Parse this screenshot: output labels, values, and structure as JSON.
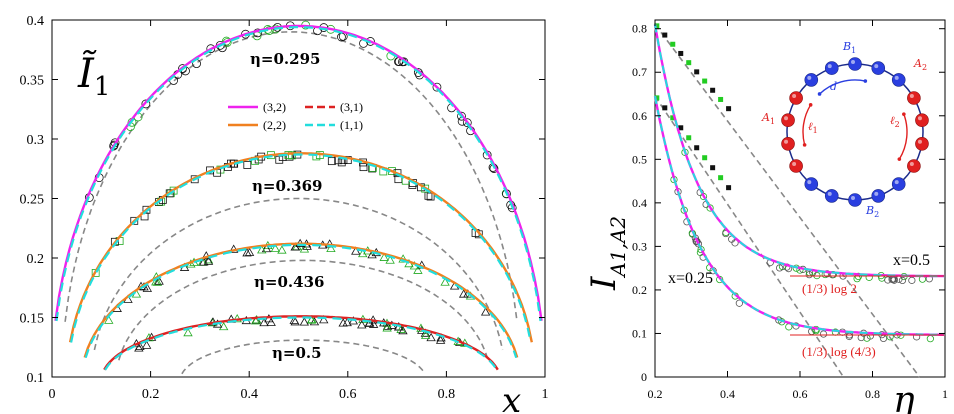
{
  "chart_data": [
    {
      "type": "line",
      "title": "",
      "panel_label": "Ĩ",
      "panel_label_sub": "1",
      "xlabel": "x",
      "ylabel": "",
      "xlim": [
        0,
        1
      ],
      "ylim": [
        0.1,
        0.4
      ],
      "xticks": [
        "0",
        "0.2",
        "0.4",
        "0.6",
        "0.8",
        "1"
      ],
      "yticks": [
        "0.1",
        "0.15",
        "0.2",
        "0.25",
        "0.3",
        "0.35",
        "0.4"
      ],
      "legend": [
        {
          "label": "(3,2)",
          "color": "#ee22ee"
        },
        {
          "label": "(3,1)",
          "color": "#dd2222"
        },
        {
          "label": "(2,2)",
          "color": "#f08020"
        },
        {
          "label": "(1,1)",
          "color": "#22dddd"
        }
      ],
      "curves": [
        {
          "eta_label": "η=0.295",
          "peak": 0.395,
          "domain": [
            0.0,
            1.0
          ],
          "series": "(3,2)",
          "color": "#ee22ee",
          "gray_peak": 0.39,
          "gray_domain": [
            0.02,
            0.95
          ]
        },
        {
          "eta_label": "η=0.369",
          "peak": 0.288,
          "domain": [
            0.03,
            0.98
          ],
          "series": "(2,2)",
          "color": "#f08020",
          "gray_peak": 0.25,
          "gray_domain": [
            0.08,
            0.92
          ]
        },
        {
          "eta_label": "η=0.436",
          "peak": 0.212,
          "domain": [
            0.06,
            0.95
          ],
          "series": "(2,2)",
          "color": "#f08020",
          "gray_peak": 0.198,
          "gray_domain": [
            0.13,
            0.89
          ]
        },
        {
          "eta_label": "η=0.5",
          "peak": 0.151,
          "domain": [
            0.1,
            0.91
          ],
          "series": "(3,1)",
          "color": "#dd2222",
          "gray_peak": 0.131,
          "gray_domain": [
            0.26,
            0.76
          ]
        }
      ]
    },
    {
      "type": "line",
      "title": "",
      "xlabel": "η",
      "ylabel": "I",
      "ylabel_sub": "A1,A2",
      "xlim": [
        0.2,
        1.0
      ],
      "ylim": [
        0,
        0.82
      ],
      "xticks": [
        "0.2",
        "0.4",
        "0.6",
        "0.8",
        "1"
      ],
      "yticks": [
        "0",
        "0.1",
        "0.2",
        "0.3",
        "0.4",
        "0.5",
        "0.6",
        "0.7",
        "0.8"
      ],
      "series": [
        {
          "name": "x=0.5",
          "asymptote": 0.231,
          "start": 0.81,
          "decay": 8.5
        },
        {
          "name": "x=0.25",
          "asymptote": 0.096,
          "start": 0.645,
          "decay": 8.0
        }
      ],
      "annotations": {
        "upper_x_label": "x=0.5",
        "lower_x_label": "x=0.25",
        "upper_log": "(1/3) log 2",
        "lower_log": "(1/3) log (4/3)"
      },
      "inset": {
        "labels": {
          "B1": "B",
          "B1_sub": "1",
          "B2": "B",
          "B2_sub": "2",
          "A1": "A",
          "A1_sub": "1",
          "A2": "A",
          "A2_sub": "2",
          "d": "d",
          "l1": "ℓ",
          "l1_sub": "1",
          "l2": "ℓ",
          "l2_sub": "2"
        },
        "red_color": "#e02020",
        "blue_color": "#2a3fe0"
      }
    }
  ]
}
